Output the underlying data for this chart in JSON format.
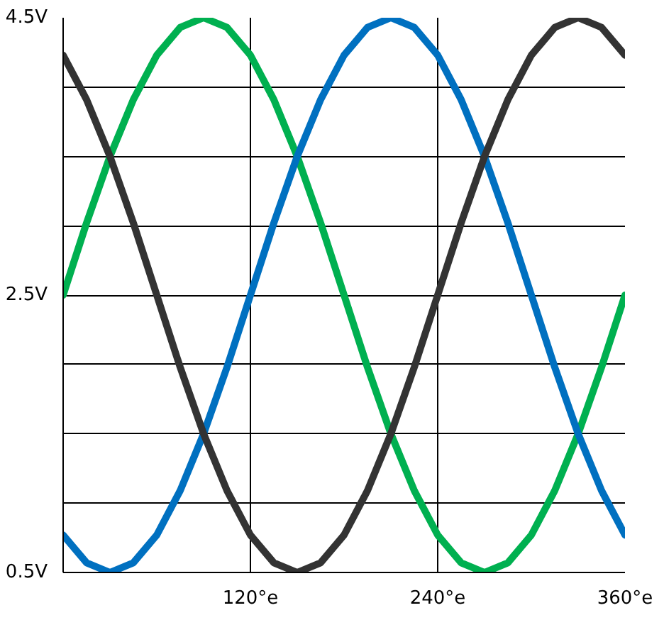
{
  "chart_data": {
    "type": "line",
    "x": [
      0,
      15,
      30,
      45,
      60,
      75,
      90,
      105,
      120,
      135,
      150,
      165,
      180,
      195,
      210,
      225,
      240,
      255,
      270,
      285,
      300,
      315,
      330,
      345,
      360
    ],
    "series": [
      {
        "color": "#00b050",
        "values": [
          2.5,
          3.02,
          3.5,
          3.91,
          4.23,
          4.43,
          4.5,
          4.43,
          4.23,
          3.91,
          3.5,
          3.02,
          2.5,
          1.98,
          1.5,
          1.09,
          0.77,
          0.57,
          0.5,
          0.57,
          0.77,
          1.09,
          1.5,
          1.98,
          2.5
        ]
      },
      {
        "color": "#0070c0",
        "values": [
          0.77,
          0.57,
          0.5,
          0.57,
          0.77,
          1.09,
          1.5,
          1.98,
          2.5,
          3.02,
          3.5,
          3.91,
          4.23,
          4.43,
          4.5,
          4.43,
          4.23,
          3.91,
          3.5,
          3.02,
          2.5,
          1.98,
          1.5,
          1.09,
          0.77
        ]
      },
      {
        "color": "#333333",
        "values": [
          4.23,
          3.91,
          3.5,
          3.02,
          2.5,
          1.98,
          1.5,
          1.09,
          0.77,
          0.57,
          0.5,
          0.57,
          0.77,
          1.09,
          1.5,
          1.98,
          2.5,
          3.02,
          3.5,
          3.91,
          4.23,
          4.43,
          4.5,
          4.43,
          4.23
        ]
      }
    ],
    "xlim": [
      0,
      360
    ],
    "xticks": [
      {
        "value": 0,
        "label": null
      },
      {
        "value": 120,
        "label": "120°e"
      },
      {
        "value": 240,
        "label": "240°e"
      },
      {
        "value": 360,
        "label": "360°e"
      }
    ],
    "ylim": [
      0.5,
      4.5
    ],
    "yticks": [
      {
        "value": 0.5,
        "label": "0.5V"
      },
      {
        "value": 1.0,
        "label": null
      },
      {
        "value": 1.5,
        "label": null
      },
      {
        "value": 2.0,
        "label": null
      },
      {
        "value": 2.5,
        "label": "2.5V"
      },
      {
        "value": 3.0,
        "label": null
      },
      {
        "value": 3.5,
        "label": null
      },
      {
        "value": 4.0,
        "label": null
      },
      {
        "value": 4.5,
        "label": "4.5V"
      }
    ],
    "grid": true,
    "marker": "none",
    "line_style": "solid"
  }
}
